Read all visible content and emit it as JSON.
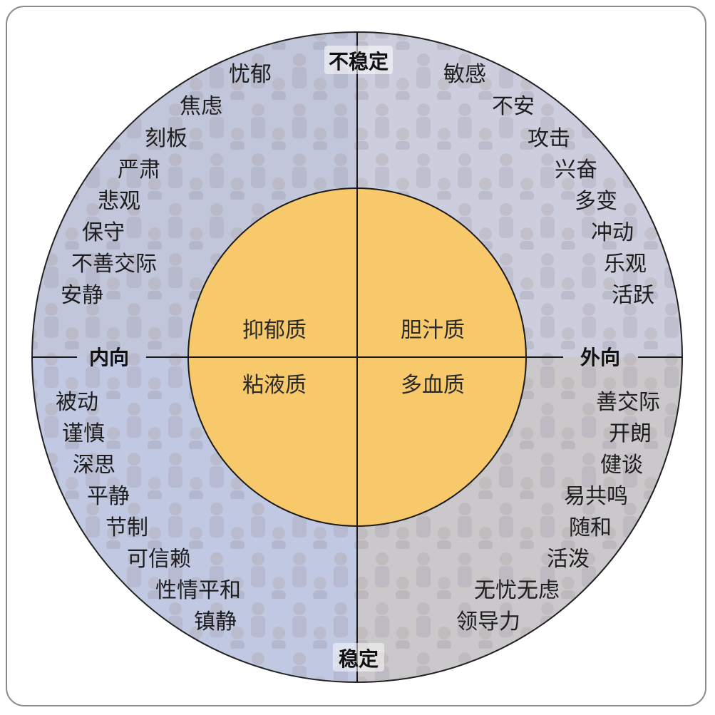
{
  "axes": {
    "top": "不稳定",
    "bottom": "稳定",
    "left": "内向",
    "right": "外向"
  },
  "temperaments": {
    "top_left": "抑郁质",
    "top_right": "胆汁质",
    "bottom_left": "粘液质",
    "bottom_right": "多血质"
  },
  "traits": {
    "top_left": [
      "忧郁",
      "焦虑",
      "刻板",
      "严肃",
      "悲观",
      "保守",
      "不善交际",
      "安静"
    ],
    "top_right": [
      "敏感",
      "不安",
      "攻击",
      "兴奋",
      "多变",
      "冲动",
      "乐观",
      "活跃"
    ],
    "bottom_left": [
      "被动",
      "谨慎",
      "深思",
      "平静",
      "节制",
      "可信赖",
      "性情平和",
      "镇静"
    ],
    "bottom_right": [
      "善交际",
      "开朗",
      "健谈",
      "易共鸣",
      "随和",
      "活泼",
      "无忧无虑",
      "领导力"
    ]
  },
  "colors": {
    "inner_circle": "#f8c96a",
    "photo_top_left": "#a9b0cc",
    "photo_top_right": "#b9bcd2",
    "photo_bottom_left": "#aab3d6",
    "photo_bottom_right": "#b8b3b8",
    "frame": "#8a8a8a"
  }
}
